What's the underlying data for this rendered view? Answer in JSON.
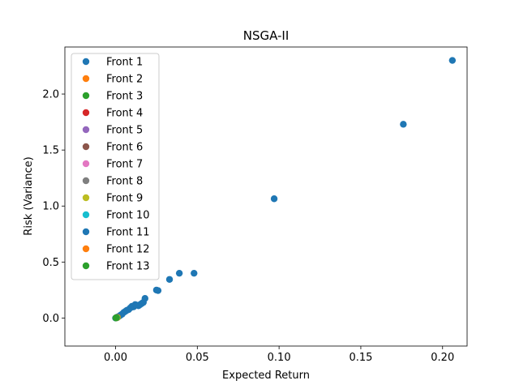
{
  "chart_data": {
    "type": "scatter",
    "title": "NSGA-II",
    "xlabel": "Expected Return",
    "ylabel": "Risk (Variance)",
    "xlim": [
      -0.031,
      0.215
    ],
    "ylim": [
      -0.25,
      2.42
    ],
    "xticks": [
      0.0,
      0.05,
      0.1,
      0.15,
      0.2
    ],
    "xtick_labels": [
      "0.00",
      "0.05",
      "0.10",
      "0.15",
      "0.20"
    ],
    "yticks": [
      0.0,
      0.5,
      1.0,
      1.5,
      2.0
    ],
    "ytick_labels": [
      "0.0",
      "0.5",
      "1.0",
      "1.5",
      "2.0"
    ],
    "grid": false,
    "legend_placement": "top-left",
    "series": [
      {
        "name": "Front 1",
        "color": "#1f77b4",
        "points": [
          [
            0.206,
            2.3
          ],
          [
            0.176,
            1.73
          ],
          [
            0.097,
            1.065
          ],
          [
            0.048,
            0.4
          ],
          [
            0.039,
            0.4
          ],
          [
            0.033,
            0.345
          ],
          [
            0.026,
            0.245
          ],
          [
            0.025,
            0.25
          ],
          [
            0.018,
            0.175
          ],
          [
            0.017,
            0.14
          ],
          [
            0.016,
            0.13
          ],
          [
            0.015,
            0.12
          ],
          [
            0.014,
            0.11
          ],
          [
            0.013,
            0.115
          ],
          [
            0.012,
            0.12
          ],
          [
            0.011,
            0.1
          ],
          [
            0.01,
            0.105
          ],
          [
            0.009,
            0.09
          ],
          [
            0.008,
            0.075
          ],
          [
            0.007,
            0.07
          ],
          [
            0.006,
            0.06
          ],
          [
            0.005,
            0.05
          ],
          [
            0.004,
            0.035
          ],
          [
            0.003,
            0.025
          ],
          [
            0.002,
            0.015
          ],
          [
            0.001,
            0.008
          ],
          [
            0.0005,
            0.004
          ],
          [
            0.0,
            0.0
          ]
        ]
      },
      {
        "name": "Front 2",
        "color": "#ff7f0e",
        "points": [
          [
            0.0012,
            0.006
          ],
          [
            0.0004,
            0.002
          ]
        ]
      },
      {
        "name": "Front 3",
        "color": "#2ca02c",
        "points": [
          [
            0.0011,
            0.005
          ],
          [
            0.0003,
            0.002
          ]
        ]
      },
      {
        "name": "Front 4",
        "color": "#d62728",
        "points": [
          [
            0.001,
            0.005
          ]
        ]
      },
      {
        "name": "Front 5",
        "color": "#9467bd",
        "points": [
          [
            0.0009,
            0.004
          ]
        ]
      },
      {
        "name": "Front 6",
        "color": "#8c564b",
        "points": [
          [
            0.0008,
            0.004
          ]
        ]
      },
      {
        "name": "Front 7",
        "color": "#e377c2",
        "points": [
          [
            0.0007,
            0.003
          ]
        ]
      },
      {
        "name": "Front 8",
        "color": "#7f7f7f",
        "points": [
          [
            0.0006,
            0.003
          ]
        ]
      },
      {
        "name": "Front 9",
        "color": "#bcbd22",
        "points": [
          [
            0.001,
            0.004
          ],
          [
            0.0005,
            0.003
          ]
        ]
      },
      {
        "name": "Front 10",
        "color": "#17becf",
        "points": [
          [
            0.0006,
            0.003
          ]
        ]
      },
      {
        "name": "Front 11",
        "color": "#1f77b4",
        "points": [
          [
            0.0005,
            0.002
          ]
        ]
      },
      {
        "name": "Front 12",
        "color": "#ff7f0e",
        "points": [
          [
            0.0004,
            0.002
          ]
        ]
      },
      {
        "name": "Front 13",
        "color": "#2ca02c",
        "points": [
          [
            0.0005,
            0.003
          ],
          [
            0.0002,
            0.001
          ]
        ]
      }
    ]
  }
}
